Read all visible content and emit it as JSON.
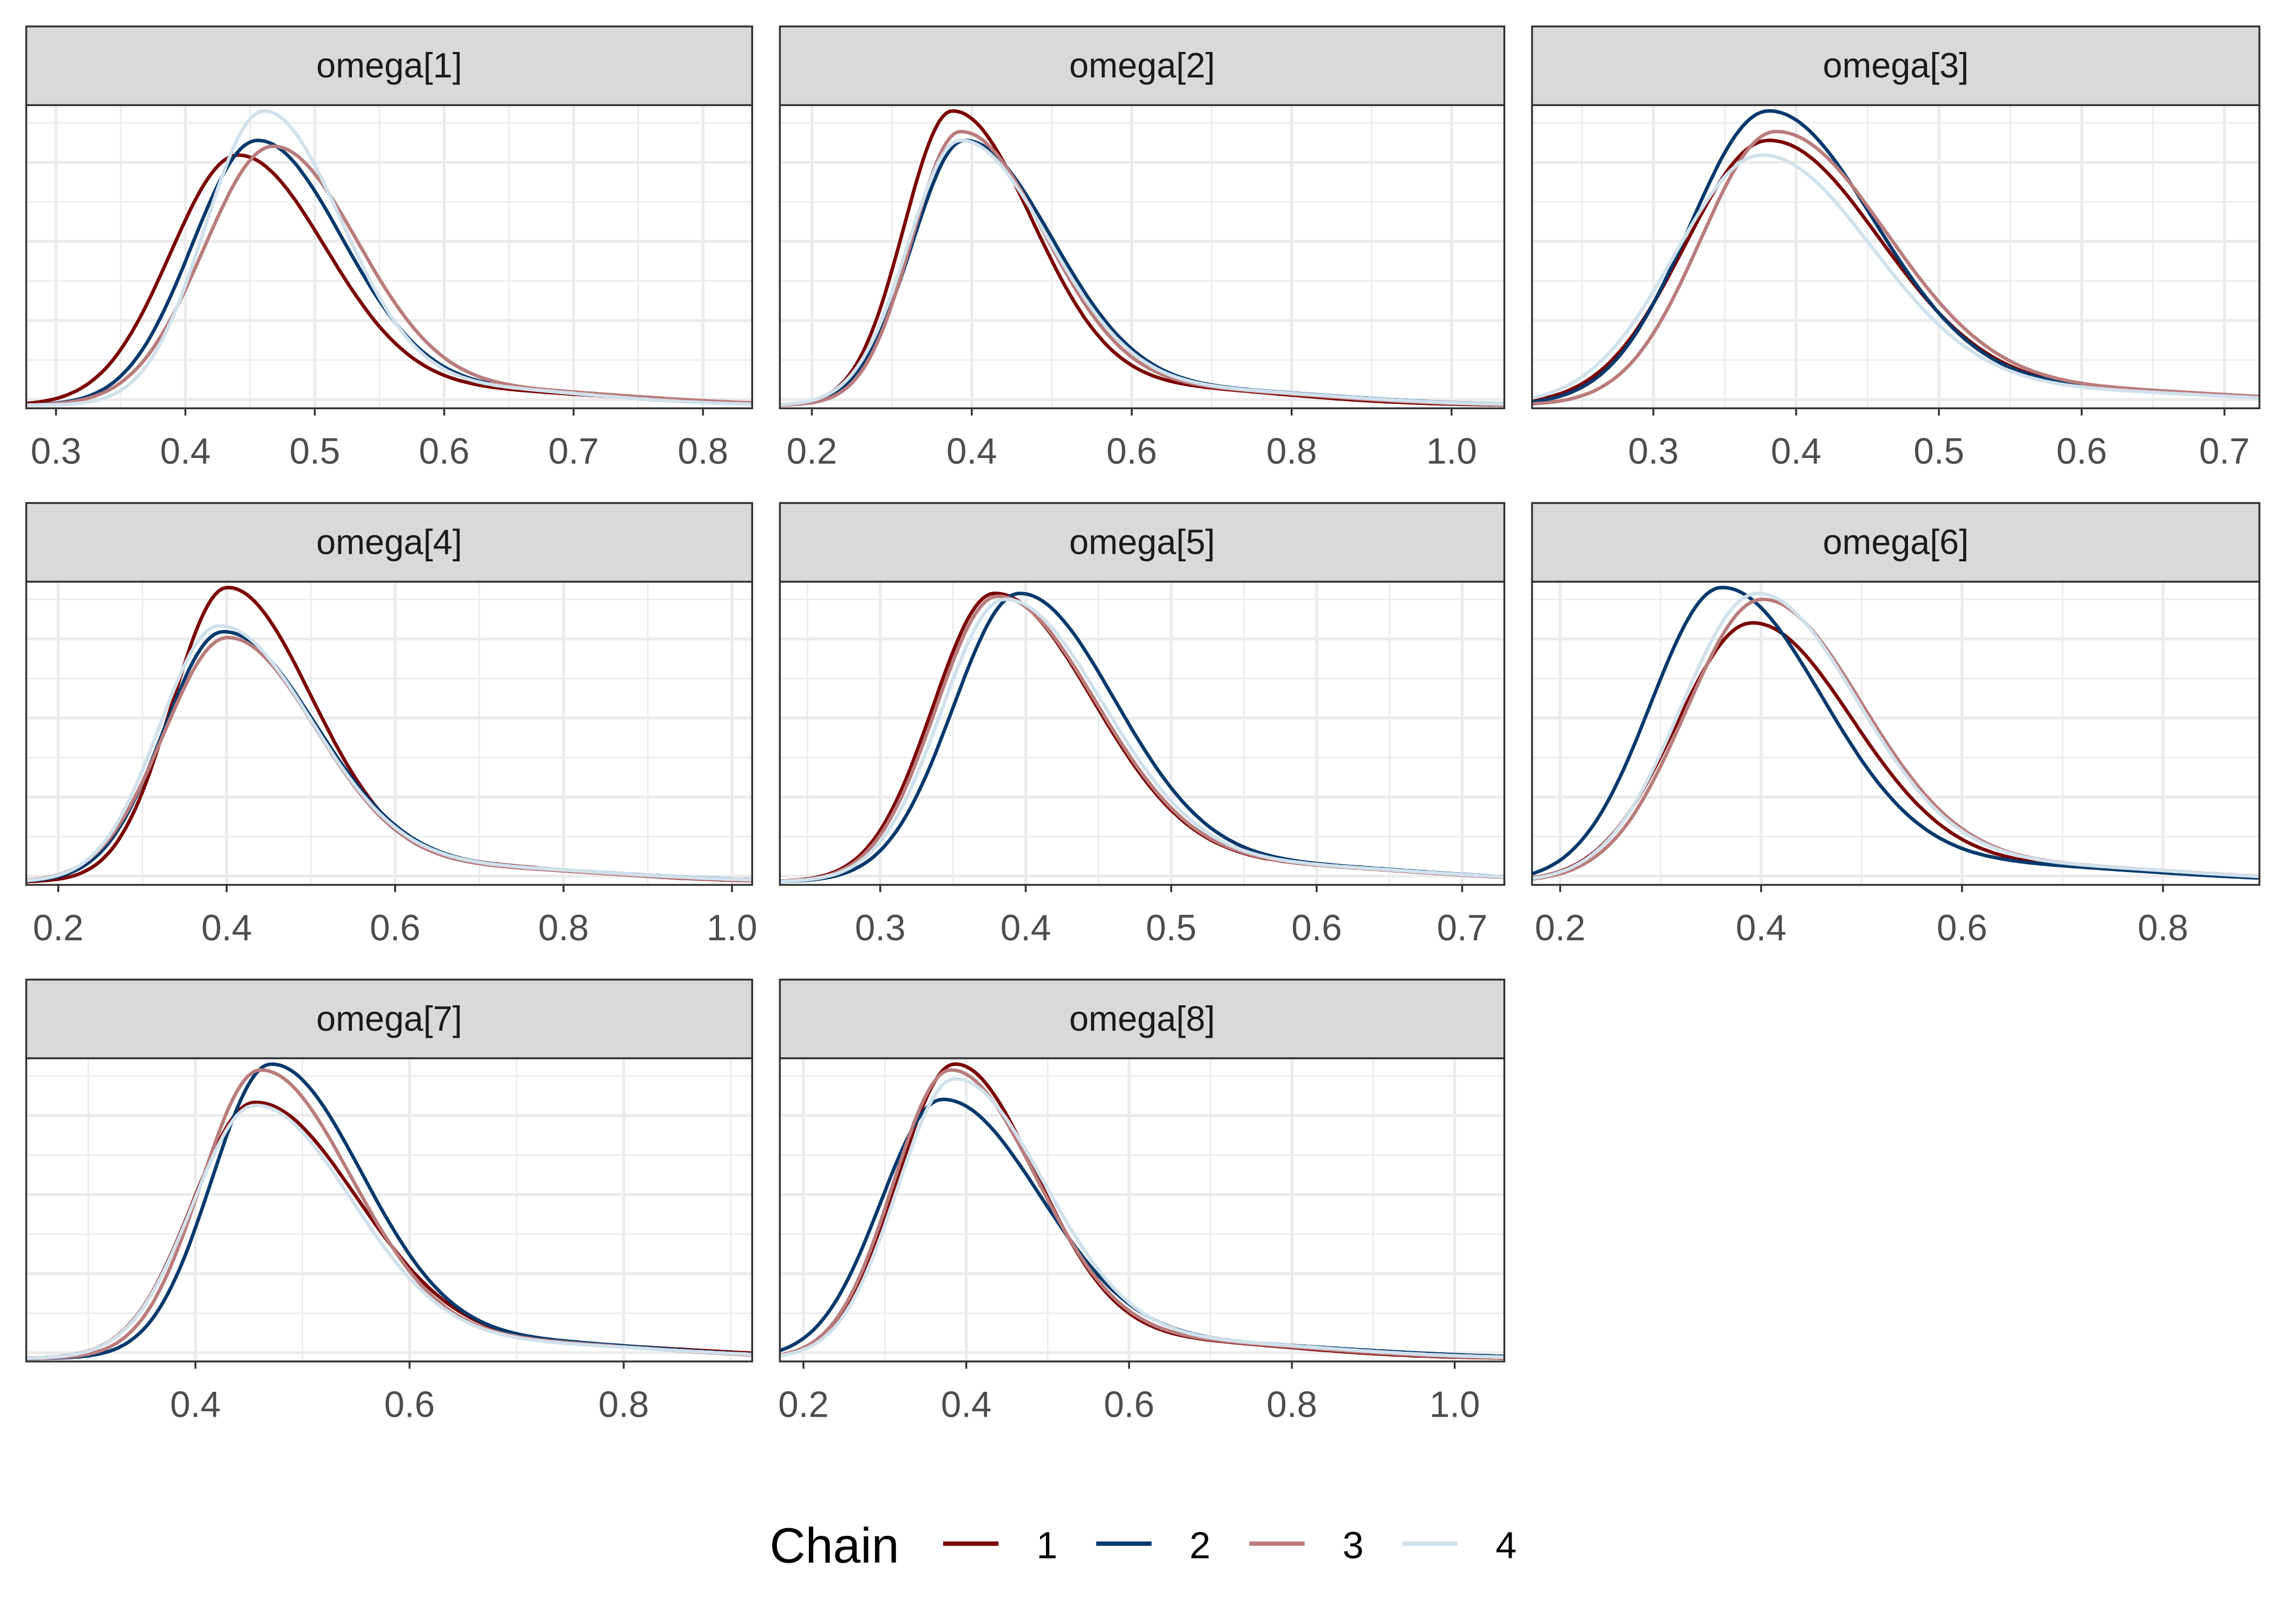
{
  "chart_data": {
    "type": "line",
    "title": "",
    "chart_kind": "density overlay by chain",
    "legend": {
      "title": "Chain",
      "placement": "bottom",
      "entries": [
        {
          "label": "1",
          "color": "#7b0000"
        },
        {
          "label": "2",
          "color": "#03396c"
        },
        {
          "label": "3",
          "color": "#b97c7c"
        },
        {
          "label": "4",
          "color": "#d1e1ec"
        }
      ]
    },
    "panels": [
      {
        "title": "omega[1]",
        "xlim": [
          0.277,
          0.838
        ],
        "ticks": [
          "0.3",
          "0.4",
          "0.5",
          "0.6",
          "0.7",
          "0.8"
        ],
        "chains": [
          {
            "mode": 0.44,
            "sl": 0.052,
            "sr": 0.068,
            "h": 0.85
          },
          {
            "mode": 0.455,
            "sl": 0.05,
            "sr": 0.066,
            "h": 0.9
          },
          {
            "mode": 0.467,
            "sl": 0.053,
            "sr": 0.066,
            "h": 0.88
          },
          {
            "mode": 0.46,
            "sl": 0.045,
            "sr": 0.06,
            "h": 1.0
          }
        ]
      },
      {
        "title": "omega[2]",
        "xlim": [
          0.16,
          1.066
        ],
        "ticks": [
          "0.2",
          "0.4",
          "0.6",
          "0.8",
          "1.0"
        ],
        "chains": [
          {
            "mode": 0.375,
            "sl": 0.06,
            "sr": 0.1,
            "h": 1.0
          },
          {
            "mode": 0.39,
            "sl": 0.065,
            "sr": 0.11,
            "h": 0.9
          },
          {
            "mode": 0.385,
            "sl": 0.06,
            "sr": 0.105,
            "h": 0.93
          },
          {
            "mode": 0.385,
            "sl": 0.065,
            "sr": 0.11,
            "h": 0.9
          }
        ]
      },
      {
        "title": "omega[3]",
        "xlim": [
          0.215,
          0.7245
        ],
        "ticks": [
          "0.3",
          "0.4",
          "0.5",
          "0.6",
          "0.7"
        ],
        "chains": [
          {
            "mode": 0.38,
            "sl": 0.058,
            "sr": 0.078,
            "h": 0.9
          },
          {
            "mode": 0.38,
            "sl": 0.055,
            "sr": 0.074,
            "h": 1.0
          },
          {
            "mode": 0.385,
            "sl": 0.052,
            "sr": 0.078,
            "h": 0.93
          },
          {
            "mode": 0.375,
            "sl": 0.06,
            "sr": 0.078,
            "h": 0.85
          }
        ]
      },
      {
        "title": "omega[4]",
        "xlim": [
          0.162,
          1.024
        ],
        "ticks": [
          "0.2",
          "0.4",
          "0.6",
          "0.8",
          "1.0"
        ],
        "chains": [
          {
            "mode": 0.4,
            "sl": 0.065,
            "sr": 0.1,
            "h": 1.0
          },
          {
            "mode": 0.395,
            "sl": 0.07,
            "sr": 0.11,
            "h": 0.85
          },
          {
            "mode": 0.4,
            "sl": 0.075,
            "sr": 0.105,
            "h": 0.83
          },
          {
            "mode": 0.39,
            "sl": 0.07,
            "sr": 0.11,
            "h": 0.87
          }
        ]
      },
      {
        "title": "omega[5]",
        "xlim": [
          0.231,
          0.729
        ],
        "ticks": [
          "0.3",
          "0.4",
          "0.5",
          "0.6",
          "0.7"
        ],
        "chains": [
          {
            "mode": 0.378,
            "sl": 0.042,
            "sr": 0.068,
            "h": 0.98
          },
          {
            "mode": 0.395,
            "sl": 0.045,
            "sr": 0.066,
            "h": 0.98
          },
          {
            "mode": 0.38,
            "sl": 0.042,
            "sr": 0.068,
            "h": 0.97
          },
          {
            "mode": 0.385,
            "sl": 0.043,
            "sr": 0.068,
            "h": 0.96
          }
        ]
      },
      {
        "title": "omega[6]",
        "xlim": [
          0.172,
          0.896
        ],
        "ticks": [
          "0.2",
          "0.4",
          "0.6",
          "0.8"
        ],
        "chains": [
          {
            "mode": 0.39,
            "sl": 0.075,
            "sr": 0.1,
            "h": 0.88
          },
          {
            "mode": 0.36,
            "sl": 0.07,
            "sr": 0.1,
            "h": 1.0
          },
          {
            "mode": 0.4,
            "sl": 0.075,
            "sr": 0.1,
            "h": 0.96
          },
          {
            "mode": 0.395,
            "sl": 0.075,
            "sr": 0.1,
            "h": 0.98
          }
        ]
      },
      {
        "title": "omega[7]",
        "xlim": [
          0.242,
          0.92
        ],
        "ticks": [
          "0.4",
          "0.6",
          "0.8"
        ],
        "chains": [
          {
            "mode": 0.455,
            "sl": 0.058,
            "sr": 0.095,
            "h": 0.87
          },
          {
            "mode": 0.47,
            "sl": 0.055,
            "sr": 0.085,
            "h": 1.0
          },
          {
            "mode": 0.46,
            "sl": 0.055,
            "sr": 0.085,
            "h": 0.98
          },
          {
            "mode": 0.455,
            "sl": 0.058,
            "sr": 0.09,
            "h": 0.86
          }
        ]
      },
      {
        "title": "omega[8]",
        "xlim": [
          0.171,
          1.061
        ],
        "ticks": [
          "0.2",
          "0.4",
          "0.6",
          "0.8",
          "1.0"
        ],
        "chains": [
          {
            "mode": 0.385,
            "sl": 0.07,
            "sr": 0.1,
            "h": 1.0
          },
          {
            "mode": 0.37,
            "sl": 0.075,
            "sr": 0.12,
            "h": 0.88
          },
          {
            "mode": 0.38,
            "sl": 0.07,
            "sr": 0.105,
            "h": 0.98
          },
          {
            "mode": 0.385,
            "sl": 0.07,
            "sr": 0.11,
            "h": 0.95
          }
        ]
      }
    ]
  }
}
